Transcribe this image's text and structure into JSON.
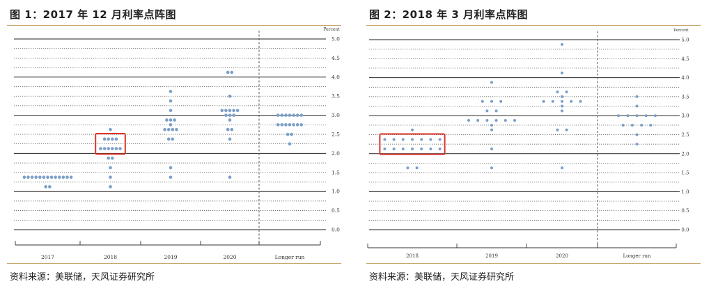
{
  "figures": [
    {
      "title": "图 1：2017 年 12 月利率点阵图",
      "source": "资料来源：美联储，天风证券研究所",
      "chart_data": {
        "type": "scatter",
        "title": "",
        "xlabel": "",
        "ylabel": "Percent",
        "ylim": [
          0,
          5
        ],
        "y_ticks": [
          "0.0",
          "0.5",
          "1.0",
          "1.5",
          "2.0",
          "2.5",
          "3.0",
          "3.5",
          "4.0",
          "4.5",
          "5.0"
        ],
        "categories": [
          "2017",
          "2018",
          "2019",
          "2020",
          "Longer run"
        ],
        "dots": [
          {
            "category": "2017",
            "y": 1.375,
            "count": 13
          },
          {
            "category": "2017",
            "y": 1.125,
            "count": 2
          },
          {
            "category": "2018",
            "y": 2.625,
            "count": 1
          },
          {
            "category": "2018",
            "y": 2.375,
            "count": 4
          },
          {
            "category": "2018",
            "y": 2.125,
            "count": 6
          },
          {
            "category": "2018",
            "y": 1.875,
            "count": 2
          },
          {
            "category": "2018",
            "y": 1.625,
            "count": 1
          },
          {
            "category": "2018",
            "y": 1.375,
            "count": 1
          },
          {
            "category": "2018",
            "y": 1.125,
            "count": 1
          },
          {
            "category": "2019",
            "y": 3.625,
            "count": 1
          },
          {
            "category": "2019",
            "y": 3.375,
            "count": 1
          },
          {
            "category": "2019",
            "y": 3.125,
            "count": 1
          },
          {
            "category": "2019",
            "y": 2.875,
            "count": 3
          },
          {
            "category": "2019",
            "y": 2.75,
            "count": 1
          },
          {
            "category": "2019",
            "y": 2.625,
            "count": 4
          },
          {
            "category": "2019",
            "y": 2.375,
            "count": 2
          },
          {
            "category": "2019",
            "y": 1.625,
            "count": 1
          },
          {
            "category": "2019",
            "y": 1.375,
            "count": 1
          },
          {
            "category": "2020",
            "y": 4.125,
            "count": 2
          },
          {
            "category": "2020",
            "y": 3.5,
            "count": 1
          },
          {
            "category": "2020",
            "y": 3.125,
            "count": 5
          },
          {
            "category": "2020",
            "y": 3.0,
            "count": 3
          },
          {
            "category": "2020",
            "y": 2.875,
            "count": 1
          },
          {
            "category": "2020",
            "y": 2.625,
            "count": 2
          },
          {
            "category": "2020",
            "y": 2.375,
            "count": 1
          },
          {
            "category": "2020",
            "y": 1.375,
            "count": 1
          },
          {
            "category": "Longer run",
            "y": 3.0,
            "count": 7
          },
          {
            "category": "Longer run",
            "y": 2.75,
            "count": 7
          },
          {
            "category": "Longer run",
            "y": 2.5,
            "count": 2
          },
          {
            "category": "Longer run",
            "y": 2.25,
            "count": 1
          }
        ],
        "highlight": {
          "category": "2018",
          "y_range": [
            2.0,
            2.5
          ],
          "color": "#d9342b"
        },
        "colors": {
          "dot": "#7b9fc8",
          "solid_grid": "#222222",
          "dotted_grid": "#444444",
          "divider": "#555555"
        }
      }
    },
    {
      "title": "图 2：2018 年 3 月利率点阵图",
      "source": "资料来源：美联储，天风证券研究所",
      "chart_data": {
        "type": "scatter",
        "title": "",
        "xlabel": "",
        "ylabel": "Percent",
        "ylim": [
          0,
          5
        ],
        "y_ticks": [
          "0.0",
          "0.5",
          "1.0",
          "1.5",
          "2.0",
          "2.5",
          "3.0",
          "3.5",
          "4.0",
          "4.5",
          "5.0"
        ],
        "categories": [
          "2018",
          "2019",
          "2020",
          "Longer run"
        ],
        "dots": [
          {
            "category": "2018",
            "y": 2.625,
            "count": 1
          },
          {
            "category": "2018",
            "y": 2.375,
            "count": 7
          },
          {
            "category": "2018",
            "y": 2.125,
            "count": 7
          },
          {
            "category": "2018",
            "y": 1.625,
            "count": 2
          },
          {
            "category": "2019",
            "y": 3.875,
            "count": 1
          },
          {
            "category": "2019",
            "y": 3.375,
            "count": 3
          },
          {
            "category": "2019",
            "y": 3.125,
            "count": 2
          },
          {
            "category": "2019",
            "y": 2.875,
            "count": 6
          },
          {
            "category": "2019",
            "y": 2.75,
            "count": 1
          },
          {
            "category": "2019",
            "y": 2.625,
            "count": 1
          },
          {
            "category": "2019",
            "y": 2.125,
            "count": 1
          },
          {
            "category": "2019",
            "y": 1.625,
            "count": 1
          },
          {
            "category": "2020",
            "y": 4.875,
            "count": 1
          },
          {
            "category": "2020",
            "y": 4.125,
            "count": 1
          },
          {
            "category": "2020",
            "y": 3.625,
            "count": 2
          },
          {
            "category": "2020",
            "y": 3.5,
            "count": 1
          },
          {
            "category": "2020",
            "y": 3.375,
            "count": 5
          },
          {
            "category": "2020",
            "y": 3.25,
            "count": 1
          },
          {
            "category": "2020",
            "y": 3.125,
            "count": 1
          },
          {
            "category": "2020",
            "y": 2.625,
            "count": 2
          },
          {
            "category": "2020",
            "y": 1.625,
            "count": 1
          },
          {
            "category": "Longer run",
            "y": 3.5,
            "count": 1
          },
          {
            "category": "Longer run",
            "y": 3.25,
            "count": 1
          },
          {
            "category": "Longer run",
            "y": 3.0,
            "count": 5
          },
          {
            "category": "Longer run",
            "y": 2.75,
            "count": 4
          },
          {
            "category": "Longer run",
            "y": 2.5,
            "count": 1
          },
          {
            "category": "Longer run",
            "y": 2.25,
            "count": 1
          }
        ],
        "highlight": {
          "category": "2018",
          "y_range": [
            2.0,
            2.5
          ],
          "color": "#d9342b"
        },
        "colors": {
          "dot": "#7b9fc8",
          "solid_grid": "#222222",
          "dotted_grid": "#444444",
          "divider": "#555555"
        }
      }
    }
  ]
}
